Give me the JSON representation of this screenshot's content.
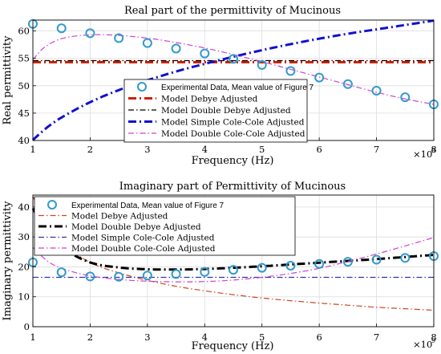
{
  "chart_data": [
    {
      "type": "line",
      "title": "Real part of the permittivity of Mucinous",
      "xlabel": "Frequency (Hz)",
      "ylabel": "Real permittivity",
      "x_multiplier": "×10",
      "x_multiplier_exp": "9",
      "xlim": [
        1,
        8
      ],
      "ylim": [
        40,
        62
      ],
      "xticks": [
        "1",
        "2",
        "3",
        "4",
        "5",
        "6",
        "7",
        "8"
      ],
      "yticks": [
        "40",
        "45",
        "50",
        "55",
        "60"
      ],
      "grid": true,
      "legend_position": "bottom-center",
      "series": [
        {
          "name": "Experimental Data, Mean value of Figure 7",
          "color": "#3399cc",
          "style": "circles",
          "x": [
            1,
            1.5,
            2,
            2.5,
            3,
            3.5,
            4,
            4.5,
            5,
            5.5,
            6,
            6.5,
            7,
            7.5,
            8
          ],
          "y": [
            61.3,
            60.5,
            59.6,
            58.7,
            57.8,
            56.8,
            55.9,
            54.9,
            53.8,
            52.7,
            51.5,
            50.3,
            49.1,
            47.9,
            46.6
          ]
        },
        {
          "name": "Model Debye Adjusted",
          "color": "#cc2200",
          "style": "dashdot-thick",
          "x": [
            1,
            8
          ],
          "y": [
            54.3,
            54.3
          ]
        },
        {
          "name": "Model Double Debye Adjusted",
          "color": "#000000",
          "style": "dashdot",
          "x": [
            1,
            8
          ],
          "y": [
            54.6,
            54.6
          ]
        },
        {
          "name": "Model Simple Cole-Cole Adjusted",
          "color": "#1111cc",
          "style": "dashdot-thick",
          "x": [
            1,
            1.25,
            1.5,
            2,
            2.5,
            3,
            3.5,
            4,
            4.5,
            5,
            5.5,
            6,
            6.5,
            7,
            7.5,
            8
          ],
          "y": [
            40.1,
            42.4,
            44.2,
            47.0,
            49.2,
            51.0,
            52.6,
            54.0,
            55.3,
            56.5,
            57.6,
            58.6,
            59.5,
            60.3,
            61.1,
            61.9
          ]
        },
        {
          "name": "Model Double Cole-Cole Adjusted",
          "color": "#cc44cc",
          "style": "dashdot",
          "x": [
            1,
            1.2,
            1.5,
            2,
            2.5,
            3,
            3.5,
            4,
            4.5,
            5,
            5.5,
            6,
            6.5,
            7,
            7.5,
            8
          ],
          "y": [
            54.8,
            57.0,
            58.6,
            59.3,
            59.2,
            58.7,
            57.9,
            56.9,
            55.7,
            54.4,
            53.0,
            51.6,
            50.2,
            48.8,
            47.6,
            46.6
          ]
        }
      ]
    },
    {
      "type": "line",
      "title": "Imaginary part of Permittivity of Mucinous",
      "xlabel": "Frequency (Hz)",
      "ylabel": "Imaginary permittivity",
      "x_multiplier": "×10",
      "x_multiplier_exp": "9",
      "xlim": [
        1,
        8
      ],
      "ylim": [
        0,
        44
      ],
      "xticks": [
        "1",
        "2",
        "3",
        "4",
        "5",
        "6",
        "7",
        "8"
      ],
      "yticks": [
        "0",
        "10",
        "20",
        "30",
        "40"
      ],
      "grid": true,
      "legend_position": "top-center",
      "series": [
        {
          "name": "Experimental Data, Mean value of Figure 7",
          "color": "#3399cc",
          "style": "circles",
          "x": [
            1,
            1.5,
            2,
            2.5,
            3,
            3.5,
            4,
            4.5,
            5,
            5.5,
            6,
            6.5,
            7,
            7.5,
            8
          ],
          "y": [
            21.5,
            18.2,
            16.8,
            16.7,
            17.1,
            17.6,
            18.3,
            19.0,
            19.7,
            20.4,
            21.0,
            21.7,
            22.4,
            23.0,
            23.6
          ]
        },
        {
          "name": "Model Debye Adjusted",
          "color": "#cc4422",
          "style": "dashdot",
          "x": [
            1,
            1.25,
            1.5,
            2,
            2.5,
            3,
            3.5,
            4,
            4.5,
            5,
            5.5,
            6,
            6.5,
            7,
            7.5,
            8
          ],
          "y": [
            43.5,
            34.0,
            28.0,
            21.5,
            18.0,
            15.5,
            13.5,
            12.0,
            10.7,
            9.6,
            8.7,
            7.9,
            7.2,
            6.5,
            6.0,
            5.5
          ]
        },
        {
          "name": "Model Double Debye Adjusted",
          "color": "#000000",
          "style": "dashdot-thick",
          "x": [
            1,
            1.25,
            1.5,
            2,
            2.5,
            3,
            3.5,
            4,
            4.5,
            5,
            5.5,
            6,
            6.5,
            7,
            7.5,
            8
          ],
          "y": [
            39.5,
            31.5,
            26.5,
            21.5,
            19.8,
            19.2,
            19.1,
            19.3,
            19.7,
            20.2,
            20.8,
            21.4,
            22.0,
            22.6,
            23.3,
            24.0
          ]
        },
        {
          "name": "Model Simple Cole-Cole Adjusted",
          "color": "#3333aa",
          "style": "dashdot",
          "x": [
            1,
            8
          ],
          "y": [
            16.5,
            16.5
          ]
        },
        {
          "name": "Model Double Cole-Cole Adjusted",
          "color": "#cc44cc",
          "style": "dashdot",
          "x": [
            1,
            1.25,
            1.5,
            2,
            2.5,
            3,
            3.5,
            4,
            4.5,
            5,
            5.5,
            6,
            6.5,
            7,
            7.5,
            8
          ],
          "y": [
            26.5,
            22.0,
            19.5,
            17.0,
            15.8,
            15.2,
            15.0,
            15.1,
            15.6,
            16.5,
            17.8,
            19.5,
            21.8,
            24.3,
            27.0,
            29.8
          ]
        }
      ]
    }
  ]
}
